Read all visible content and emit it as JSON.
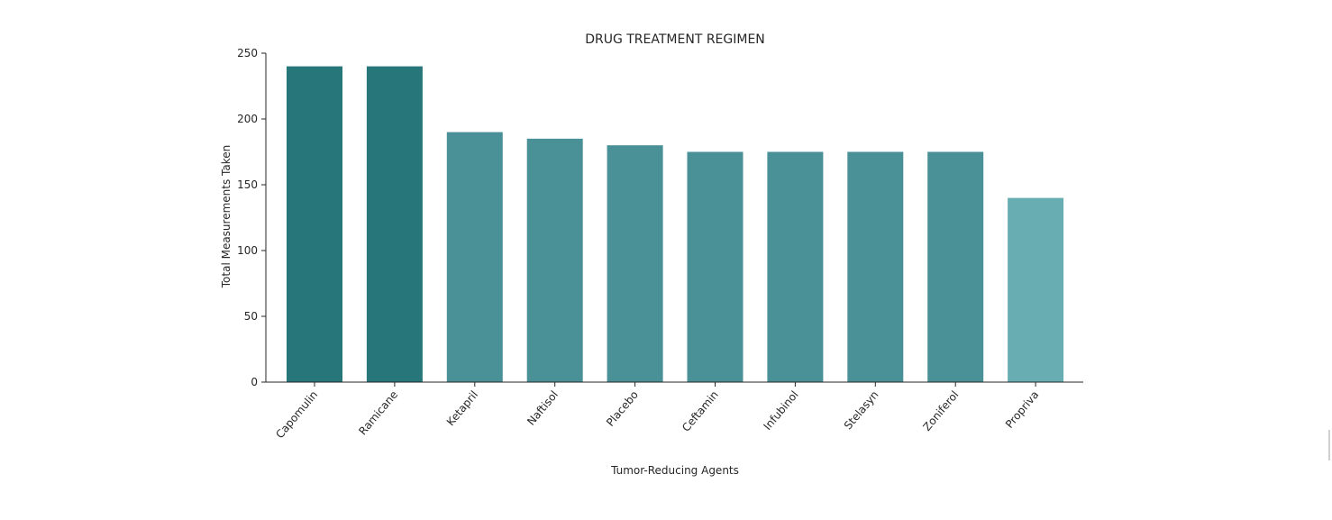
{
  "chart_data": {
    "type": "bar",
    "title": "DRUG TREATMENT REGIMEN",
    "xlabel": "Tumor-Reducing Agents",
    "ylabel": "Total Measurements Taken",
    "categories": [
      "Capomulin",
      "Ramicane",
      "Ketapril",
      "Naftisol",
      "Placebo",
      "Ceftamin",
      "Infubinol",
      "Stelasyn",
      "Zoniferol",
      "Propriva"
    ],
    "values": [
      240,
      240,
      190,
      185,
      180,
      175,
      175,
      175,
      175,
      140
    ],
    "bar_colors": [
      "#26767a",
      "#26767a",
      "#4a9197",
      "#4a9197",
      "#4a9197",
      "#4a9197",
      "#4a9197",
      "#4a9197",
      "#4a9197",
      "#68adb2"
    ],
    "ylim": [
      0,
      250
    ],
    "yticks": [
      0,
      50,
      100,
      150,
      200,
      250
    ],
    "grid": false,
    "legend": "none",
    "axis_color": "#262626"
  }
}
